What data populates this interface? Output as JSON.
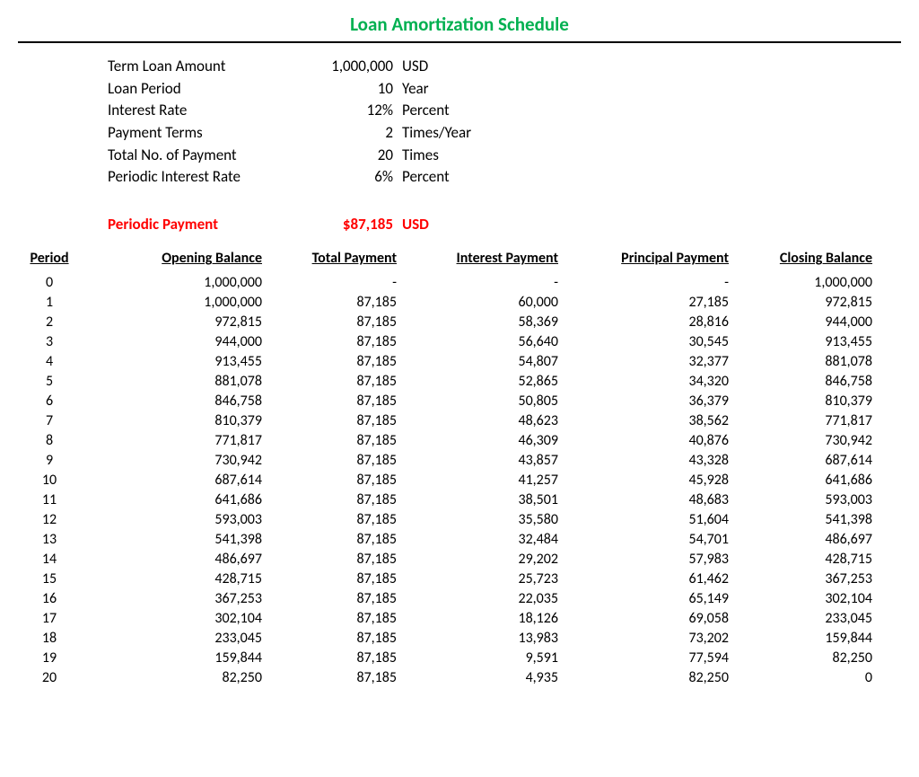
{
  "title": "Loan Amortization Schedule",
  "colors": {
    "title": "#00b050",
    "highlight": "#ff0000",
    "rule": "#000000",
    "text": "#000000",
    "background": "#ffffff"
  },
  "summary": {
    "rows": [
      {
        "label": "Term Loan Amount",
        "value": "1,000,000",
        "unit": "USD"
      },
      {
        "label": "Loan Period",
        "value": "10",
        "unit": "Year"
      },
      {
        "label": "Interest Rate",
        "value": "12%",
        "unit": "Percent"
      },
      {
        "label": "Payment Terms",
        "value": "2",
        "unit": "Times/Year"
      },
      {
        "label": "Total No. of Payment",
        "value": "20",
        "unit": "Times"
      },
      {
        "label": "Periodic Interest Rate",
        "value": "6%",
        "unit": "Percent"
      }
    ],
    "periodic_payment": {
      "label": "Periodic Payment",
      "value": "$87,185",
      "unit": "USD"
    }
  },
  "schedule": {
    "columns": [
      "Period",
      "Opening Balance",
      "Total Payment",
      "Interest Payment",
      "Principal Payment",
      "Closing Balance"
    ],
    "rows": [
      [
        "0",
        "1,000,000",
        "-",
        "-",
        "-",
        "1,000,000"
      ],
      [
        "1",
        "1,000,000",
        "87,185",
        "60,000",
        "27,185",
        "972,815"
      ],
      [
        "2",
        "972,815",
        "87,185",
        "58,369",
        "28,816",
        "944,000"
      ],
      [
        "3",
        "944,000",
        "87,185",
        "56,640",
        "30,545",
        "913,455"
      ],
      [
        "4",
        "913,455",
        "87,185",
        "54,807",
        "32,377",
        "881,078"
      ],
      [
        "5",
        "881,078",
        "87,185",
        "52,865",
        "34,320",
        "846,758"
      ],
      [
        "6",
        "846,758",
        "87,185",
        "50,805",
        "36,379",
        "810,379"
      ],
      [
        "7",
        "810,379",
        "87,185",
        "48,623",
        "38,562",
        "771,817"
      ],
      [
        "8",
        "771,817",
        "87,185",
        "46,309",
        "40,876",
        "730,942"
      ],
      [
        "9",
        "730,942",
        "87,185",
        "43,857",
        "43,328",
        "687,614"
      ],
      [
        "10",
        "687,614",
        "87,185",
        "41,257",
        "45,928",
        "641,686"
      ],
      [
        "11",
        "641,686",
        "87,185",
        "38,501",
        "48,683",
        "593,003"
      ],
      [
        "12",
        "593,003",
        "87,185",
        "35,580",
        "51,604",
        "541,398"
      ],
      [
        "13",
        "541,398",
        "87,185",
        "32,484",
        "54,701",
        "486,697"
      ],
      [
        "14",
        "486,697",
        "87,185",
        "29,202",
        "57,983",
        "428,715"
      ],
      [
        "15",
        "428,715",
        "87,185",
        "25,723",
        "61,462",
        "367,253"
      ],
      [
        "16",
        "367,253",
        "87,185",
        "22,035",
        "65,149",
        "302,104"
      ],
      [
        "17",
        "302,104",
        "87,185",
        "18,126",
        "69,058",
        "233,045"
      ],
      [
        "18",
        "233,045",
        "87,185",
        "13,983",
        "73,202",
        "159,844"
      ],
      [
        "19",
        "159,844",
        "87,185",
        "9,591",
        "77,594",
        "82,250"
      ],
      [
        "20",
        "82,250",
        "87,185",
        "4,935",
        "82,250",
        "0"
      ]
    ]
  }
}
